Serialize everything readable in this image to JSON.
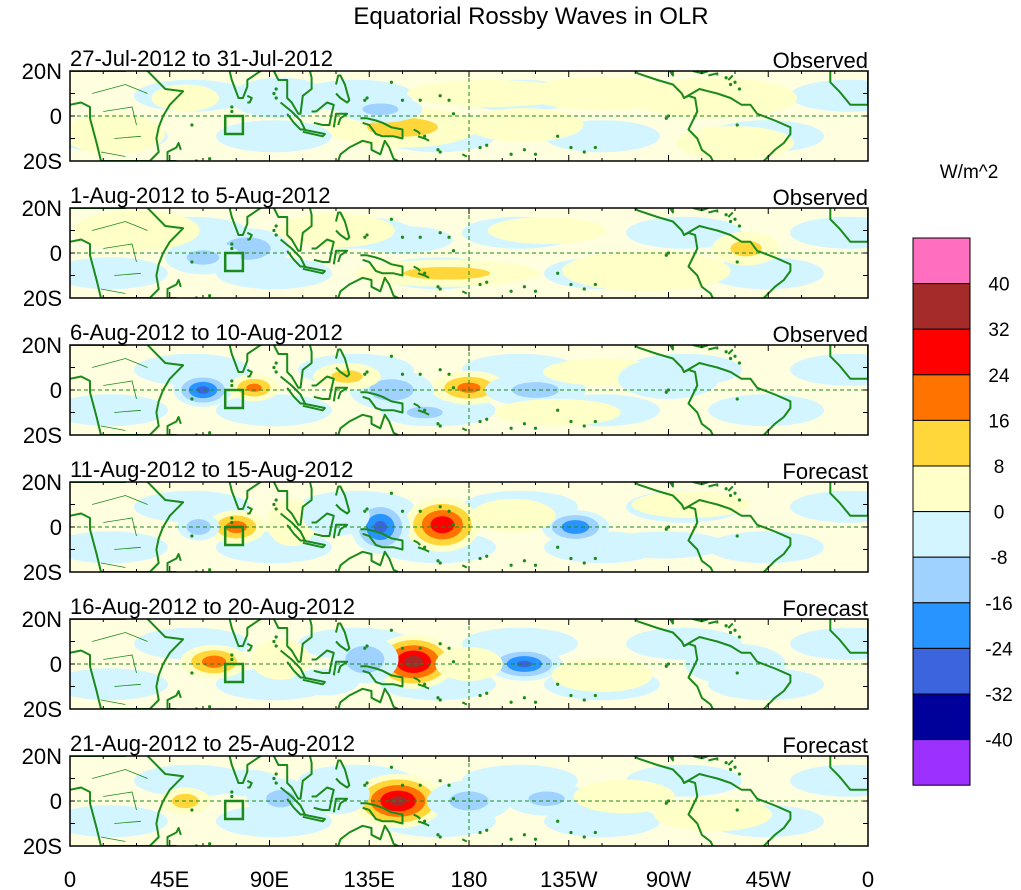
{
  "title": "Equatorial Rossby Waves in OLR",
  "colorbar": {
    "units": "W/m^2",
    "levels": [
      "40",
      "32",
      "24",
      "16",
      "8",
      "0",
      "-8",
      "-16",
      "-24",
      "-32",
      "-40"
    ],
    "colors": [
      "#ff6ebf",
      "#a52a2a",
      "#ff0000",
      "#ff7300",
      "#ffd73a",
      "#ffffc8",
      "#d2f5ff",
      "#a0d2ff",
      "#2894ff",
      "#3c64dc",
      "#00009b",
      "#9b30ff"
    ]
  },
  "axes": {
    "lon_labels": [
      "0",
      "45E",
      "90E",
      "135E",
      "180",
      "135W",
      "90W",
      "45W",
      "0"
    ],
    "lat_labels": [
      "20N",
      "0",
      "20S"
    ]
  },
  "colors": {
    "coast": "#1a8a1a",
    "frame": "#000000",
    "ref_line": "#1a8a1a"
  },
  "panels": [
    {
      "date": "27-Jul-2012 to 31-Jul-2012",
      "type": "Observed",
      "anomalies": [
        {
          "lon": 150,
          "lat": -5,
          "dlon": 18,
          "dlat": 6,
          "value": 10
        },
        {
          "lon": 205,
          "lat": -4,
          "dlon": 14,
          "dlat": 5,
          "value": 8
        },
        {
          "lon": 190,
          "lat": 10,
          "dlon": 20,
          "dlat": 4,
          "value": 6
        },
        {
          "lon": 140,
          "lat": 3,
          "dlon": 10,
          "dlat": 4,
          "value": -9
        },
        {
          "lon": 95,
          "lat": 8,
          "dlon": 12,
          "dlat": 6,
          "value": -6
        },
        {
          "lon": 52,
          "lat": 8,
          "dlon": 8,
          "dlat": 4,
          "value": 5
        },
        {
          "lon": 290,
          "lat": 8,
          "dlon": 20,
          "dlat": 6,
          "value": 4
        },
        {
          "lon": 300,
          "lat": -12,
          "dlon": 14,
          "dlat": 5,
          "value": 5
        },
        {
          "lon": 240,
          "lat": 10,
          "dlon": 18,
          "dlat": 5,
          "value": 4
        },
        {
          "lon": 20,
          "lat": -8,
          "dlon": 12,
          "dlat": 6,
          "value": 3
        }
      ]
    },
    {
      "date": "1-Aug-2012 to 5-Aug-2012",
      "type": "Observed",
      "anomalies": [
        {
          "lon": 80,
          "lat": 2,
          "dlon": 10,
          "dlat": 6,
          "value": -13
        },
        {
          "lon": 60,
          "lat": -2,
          "dlon": 9,
          "dlat": 5,
          "value": -9
        },
        {
          "lon": 170,
          "lat": -9,
          "dlon": 22,
          "dlat": 4,
          "value": 10
        },
        {
          "lon": 150,
          "lat": 6,
          "dlon": 12,
          "dlat": 4,
          "value": -8
        },
        {
          "lon": 305,
          "lat": 2,
          "dlon": 8,
          "dlat": 5,
          "value": 10
        },
        {
          "lon": 215,
          "lat": 10,
          "dlon": 14,
          "dlat": 4,
          "value": 6
        },
        {
          "lon": 120,
          "lat": 10,
          "dlon": 14,
          "dlat": 5,
          "value": 6
        },
        {
          "lon": 260,
          "lat": -8,
          "dlon": 20,
          "dlat": 6,
          "value": 4
        },
        {
          "lon": 30,
          "lat": 10,
          "dlon": 15,
          "dlat": 6,
          "value": 3
        }
      ]
    },
    {
      "date": "6-Aug-2012 to 10-Aug-2012",
      "type": "Observed",
      "anomalies": [
        {
          "lon": 60,
          "lat": 0,
          "dlon": 7,
          "dlat": 5,
          "value": -26
        },
        {
          "lon": 83,
          "lat": 1,
          "dlon": 6,
          "dlat": 4,
          "value": 18
        },
        {
          "lon": 180,
          "lat": 1,
          "dlon": 9,
          "dlat": 5,
          "value": 18
        },
        {
          "lon": 145,
          "lat": 0,
          "dlon": 10,
          "dlat": 6,
          "value": -12
        },
        {
          "lon": 125,
          "lat": 6,
          "dlon": 8,
          "dlat": 4,
          "value": 10
        },
        {
          "lon": 210,
          "lat": 0,
          "dlon": 12,
          "dlat": 5,
          "value": -10
        },
        {
          "lon": 160,
          "lat": -10,
          "dlon": 10,
          "dlat": 4,
          "value": -9
        },
        {
          "lon": 240,
          "lat": 8,
          "dlon": 14,
          "dlat": 4,
          "value": 8
        },
        {
          "lon": 220,
          "lat": -10,
          "dlon": 15,
          "dlat": 4,
          "value": 7
        },
        {
          "lon": 270,
          "lat": 5,
          "dlon": 12,
          "dlat": 6,
          "value": -6
        }
      ]
    },
    {
      "date": "11-Aug-2012 to 15-Aug-2012",
      "type": "Forecast",
      "anomalies": [
        {
          "lon": 75,
          "lat": 0,
          "dlon": 7,
          "dlat": 5,
          "value": 20
        },
        {
          "lon": 168,
          "lat": 1,
          "dlon": 9,
          "dlat": 8,
          "value": 30
        },
        {
          "lon": 140,
          "lat": 0,
          "dlon": 7,
          "dlat": 8,
          "value": -26
        },
        {
          "lon": 100,
          "lat": 2,
          "dlon": 6,
          "dlat": 7,
          "value": 7
        },
        {
          "lon": 58,
          "lat": 0,
          "dlon": 5,
          "dlat": 4,
          "value": -14
        },
        {
          "lon": 228,
          "lat": 0,
          "dlon": 8,
          "dlat": 5,
          "value": -22
        },
        {
          "lon": 120,
          "lat": 5,
          "dlon": 8,
          "dlat": 6,
          "value": -7
        },
        {
          "lon": 200,
          "lat": 5,
          "dlon": 10,
          "dlat": 5,
          "value": 6
        },
        {
          "lon": 268,
          "lat": -8,
          "dlon": 15,
          "dlat": 4,
          "value": -7
        },
        {
          "lon": 280,
          "lat": 10,
          "dlon": 14,
          "dlat": 4,
          "value": 5
        }
      ]
    },
    {
      "date": "16-Aug-2012 to 20-Aug-2012",
      "type": "Forecast",
      "anomalies": [
        {
          "lon": 155,
          "lat": 1,
          "dlon": 10,
          "dlat": 8,
          "value": 36
        },
        {
          "lon": 65,
          "lat": 1,
          "dlon": 8,
          "dlat": 5,
          "value": 20
        },
        {
          "lon": 133,
          "lat": 2,
          "dlon": 8,
          "dlat": 7,
          "value": -14
        },
        {
          "lon": 205,
          "lat": 0,
          "dlon": 9,
          "dlat": 5,
          "value": -25
        },
        {
          "lon": 95,
          "lat": 2,
          "dlon": 7,
          "dlat": 6,
          "value": 7
        },
        {
          "lon": 180,
          "lat": 0,
          "dlon": 8,
          "dlat": 5,
          "value": 6
        },
        {
          "lon": 240,
          "lat": -5,
          "dlon": 12,
          "dlat": 5,
          "value": 7
        },
        {
          "lon": 115,
          "lat": -8,
          "dlon": 8,
          "dlat": 4,
          "value": -7
        },
        {
          "lon": 300,
          "lat": 0,
          "dlon": 12,
          "dlat": 6,
          "value": -5
        }
      ]
    },
    {
      "date": "21-Aug-2012 to 25-Aug-2012",
      "type": "Forecast",
      "anomalies": [
        {
          "lon": 148,
          "lat": 0,
          "dlon": 11,
          "dlat": 8,
          "value": 34
        },
        {
          "lon": 52,
          "lat": 0,
          "dlon": 6,
          "dlat": 4,
          "value": 12
        },
        {
          "lon": 95,
          "lat": 1,
          "dlon": 8,
          "dlat": 6,
          "value": -9
        },
        {
          "lon": 120,
          "lat": 3,
          "dlon": 8,
          "dlat": 6,
          "value": -8
        },
        {
          "lon": 180,
          "lat": 0,
          "dlon": 10,
          "dlat": 6,
          "value": -10
        },
        {
          "lon": 215,
          "lat": 1,
          "dlon": 10,
          "dlat": 5,
          "value": -9
        },
        {
          "lon": 250,
          "lat": 2,
          "dlon": 12,
          "dlat": 5,
          "value": 6
        },
        {
          "lon": 80,
          "lat": 8,
          "dlon": 8,
          "dlat": 4,
          "value": -6
        },
        {
          "lon": 290,
          "lat": -6,
          "dlon": 14,
          "dlat": 5,
          "value": 5
        }
      ]
    }
  ]
}
